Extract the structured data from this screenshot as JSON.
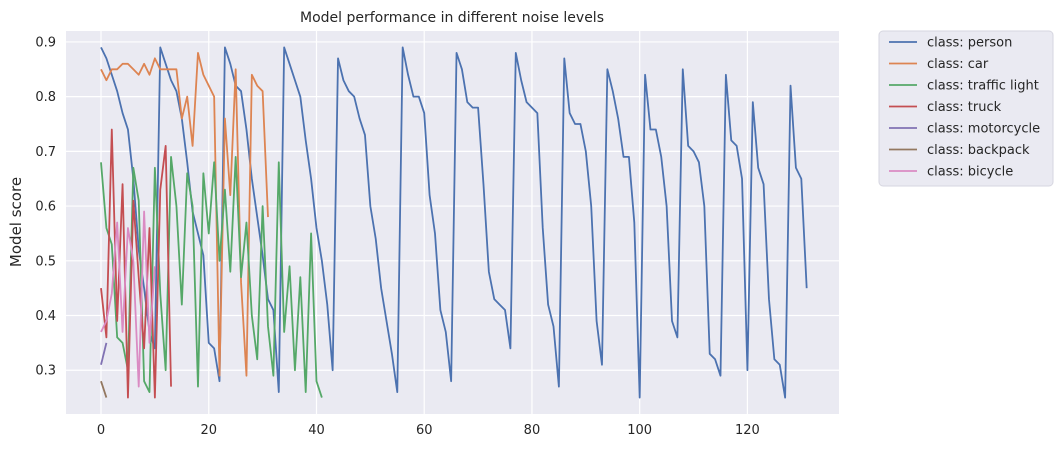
{
  "chart_data": {
    "type": "line",
    "title": "Model performance in different noise levels",
    "xlabel": "",
    "ylabel": "Model score",
    "xlim": [
      -6.5,
      137
    ],
    "ylim": [
      0.22,
      0.92
    ],
    "xticks": [
      0,
      20,
      40,
      60,
      80,
      100,
      120
    ],
    "yticks": [
      0.3,
      0.4,
      0.5,
      0.6,
      0.7,
      0.8,
      0.9
    ],
    "grid": true,
    "legend_position": "outside-top-right",
    "series": [
      {
        "name": "class: person",
        "color": "#4c72b0",
        "x": [
          0,
          1,
          2,
          3,
          4,
          5,
          6,
          7,
          8,
          9,
          10,
          11,
          12,
          13,
          14,
          15,
          16,
          17,
          18,
          19,
          20,
          21,
          22,
          23,
          24,
          25,
          26,
          27,
          28,
          29,
          30,
          31,
          32,
          33,
          34,
          35,
          36,
          37,
          38,
          39,
          40,
          41,
          42,
          43,
          44,
          45,
          46,
          47,
          48,
          49,
          50,
          51,
          52,
          53,
          54,
          55,
          56,
          57,
          58,
          59,
          60,
          61,
          62,
          63,
          64,
          65,
          66,
          67,
          68,
          69,
          70,
          71,
          72,
          73,
          74,
          75,
          76,
          77,
          78,
          79,
          80,
          81,
          82,
          83,
          84,
          85,
          86,
          87,
          88,
          89,
          90,
          91,
          92,
          93,
          94,
          95,
          96,
          97,
          98,
          99,
          100,
          101,
          102,
          103,
          104,
          105,
          106,
          107,
          108,
          109,
          110,
          111,
          112,
          113,
          114,
          115,
          116,
          117,
          118,
          119,
          120,
          121,
          122,
          123,
          124,
          125,
          126,
          127,
          128,
          129,
          130,
          131
        ],
        "y": [
          0.89,
          0.87,
          0.84,
          0.81,
          0.77,
          0.74,
          0.65,
          0.52,
          0.45,
          0.37,
          0.34,
          0.89,
          0.86,
          0.83,
          0.81,
          0.76,
          0.68,
          0.59,
          0.55,
          0.51,
          0.35,
          0.34,
          0.28,
          0.89,
          0.86,
          0.82,
          0.81,
          0.74,
          0.65,
          0.58,
          0.51,
          0.43,
          0.41,
          0.26,
          0.89,
          0.86,
          0.83,
          0.8,
          0.72,
          0.65,
          0.56,
          0.5,
          0.42,
          0.3,
          0.87,
          0.83,
          0.81,
          0.8,
          0.76,
          0.73,
          0.6,
          0.54,
          0.45,
          0.39,
          0.33,
          0.26,
          0.89,
          0.84,
          0.8,
          0.8,
          0.77,
          0.62,
          0.55,
          0.41,
          0.37,
          0.28,
          0.88,
          0.85,
          0.79,
          0.78,
          0.78,
          0.64,
          0.48,
          0.43,
          0.42,
          0.41,
          0.34,
          0.88,
          0.83,
          0.79,
          0.78,
          0.77,
          0.56,
          0.42,
          0.38,
          0.27,
          0.87,
          0.77,
          0.75,
          0.75,
          0.7,
          0.6,
          0.39,
          0.31,
          0.85,
          0.81,
          0.76,
          0.69,
          0.69,
          0.57,
          0.25,
          0.84,
          0.74,
          0.74,
          0.69,
          0.6,
          0.39,
          0.36,
          0.85,
          0.71,
          0.7,
          0.68,
          0.6,
          0.33,
          0.32,
          0.29,
          0.84,
          0.72,
          0.71,
          0.65,
          0.3,
          0.79,
          0.67,
          0.64,
          0.43,
          0.32,
          0.31,
          0.25,
          0.82,
          0.67,
          0.65,
          0.45
        ]
      },
      {
        "name": "class: car",
        "color": "#dd8452",
        "x": [
          0,
          1,
          2,
          3,
          4,
          5,
          6,
          7,
          8,
          9,
          10,
          11,
          12,
          13,
          14,
          15,
          16,
          17,
          18,
          19,
          20,
          21,
          22,
          23,
          24,
          25,
          26,
          27,
          28,
          29,
          30,
          31
        ],
        "y": [
          0.85,
          0.83,
          0.85,
          0.85,
          0.86,
          0.86,
          0.85,
          0.84,
          0.86,
          0.84,
          0.87,
          0.85,
          0.85,
          0.85,
          0.85,
          0.76,
          0.8,
          0.71,
          0.88,
          0.84,
          0.82,
          0.8,
          0.29,
          0.76,
          0.62,
          0.85,
          0.46,
          0.29,
          0.84,
          0.82,
          0.81,
          0.58
        ]
      },
      {
        "name": "class: traffic light",
        "color": "#55a868",
        "x": [
          0,
          1,
          2,
          3,
          4,
          5,
          6,
          7,
          8,
          9,
          10,
          11,
          12,
          13,
          14,
          15,
          16,
          17,
          18,
          19,
          20,
          21,
          22,
          23,
          24,
          25,
          26,
          27,
          28,
          29,
          30,
          31,
          32,
          33,
          34,
          35,
          36,
          37,
          38,
          39,
          40,
          41
        ],
        "y": [
          0.68,
          0.56,
          0.53,
          0.36,
          0.35,
          0.3,
          0.67,
          0.61,
          0.28,
          0.26,
          0.67,
          0.44,
          0.3,
          0.69,
          0.6,
          0.42,
          0.66,
          0.6,
          0.27,
          0.66,
          0.55,
          0.68,
          0.5,
          0.63,
          0.48,
          0.69,
          0.47,
          0.57,
          0.4,
          0.32,
          0.6,
          0.38,
          0.29,
          0.68,
          0.37,
          0.49,
          0.3,
          0.47,
          0.26,
          0.55,
          0.28,
          0.25
        ]
      },
      {
        "name": "class: truck",
        "color": "#c44e52",
        "x": [
          0,
          1,
          2,
          3,
          4,
          5,
          6,
          7,
          8,
          9,
          10,
          11,
          12,
          13
        ],
        "y": [
          0.45,
          0.36,
          0.74,
          0.39,
          0.64,
          0.25,
          0.61,
          0.47,
          0.34,
          0.56,
          0.25,
          0.63,
          0.71,
          0.27
        ]
      },
      {
        "name": "class: motorcycle",
        "color": "#8172b3",
        "x": [
          0,
          1
        ],
        "y": [
          0.31,
          0.35
        ]
      },
      {
        "name": "class: backpack",
        "color": "#937860",
        "x": [
          0,
          1
        ],
        "y": [
          0.28,
          0.25
        ]
      },
      {
        "name": "class: bicycle",
        "color": "#da8bc3",
        "x": [
          0,
          1,
          2,
          3,
          4,
          5,
          6,
          7,
          8,
          9,
          10
        ],
        "y": [
          0.37,
          0.39,
          0.44,
          0.57,
          0.37,
          0.56,
          0.5,
          0.27,
          0.59,
          0.35,
          0.49
        ]
      }
    ]
  }
}
